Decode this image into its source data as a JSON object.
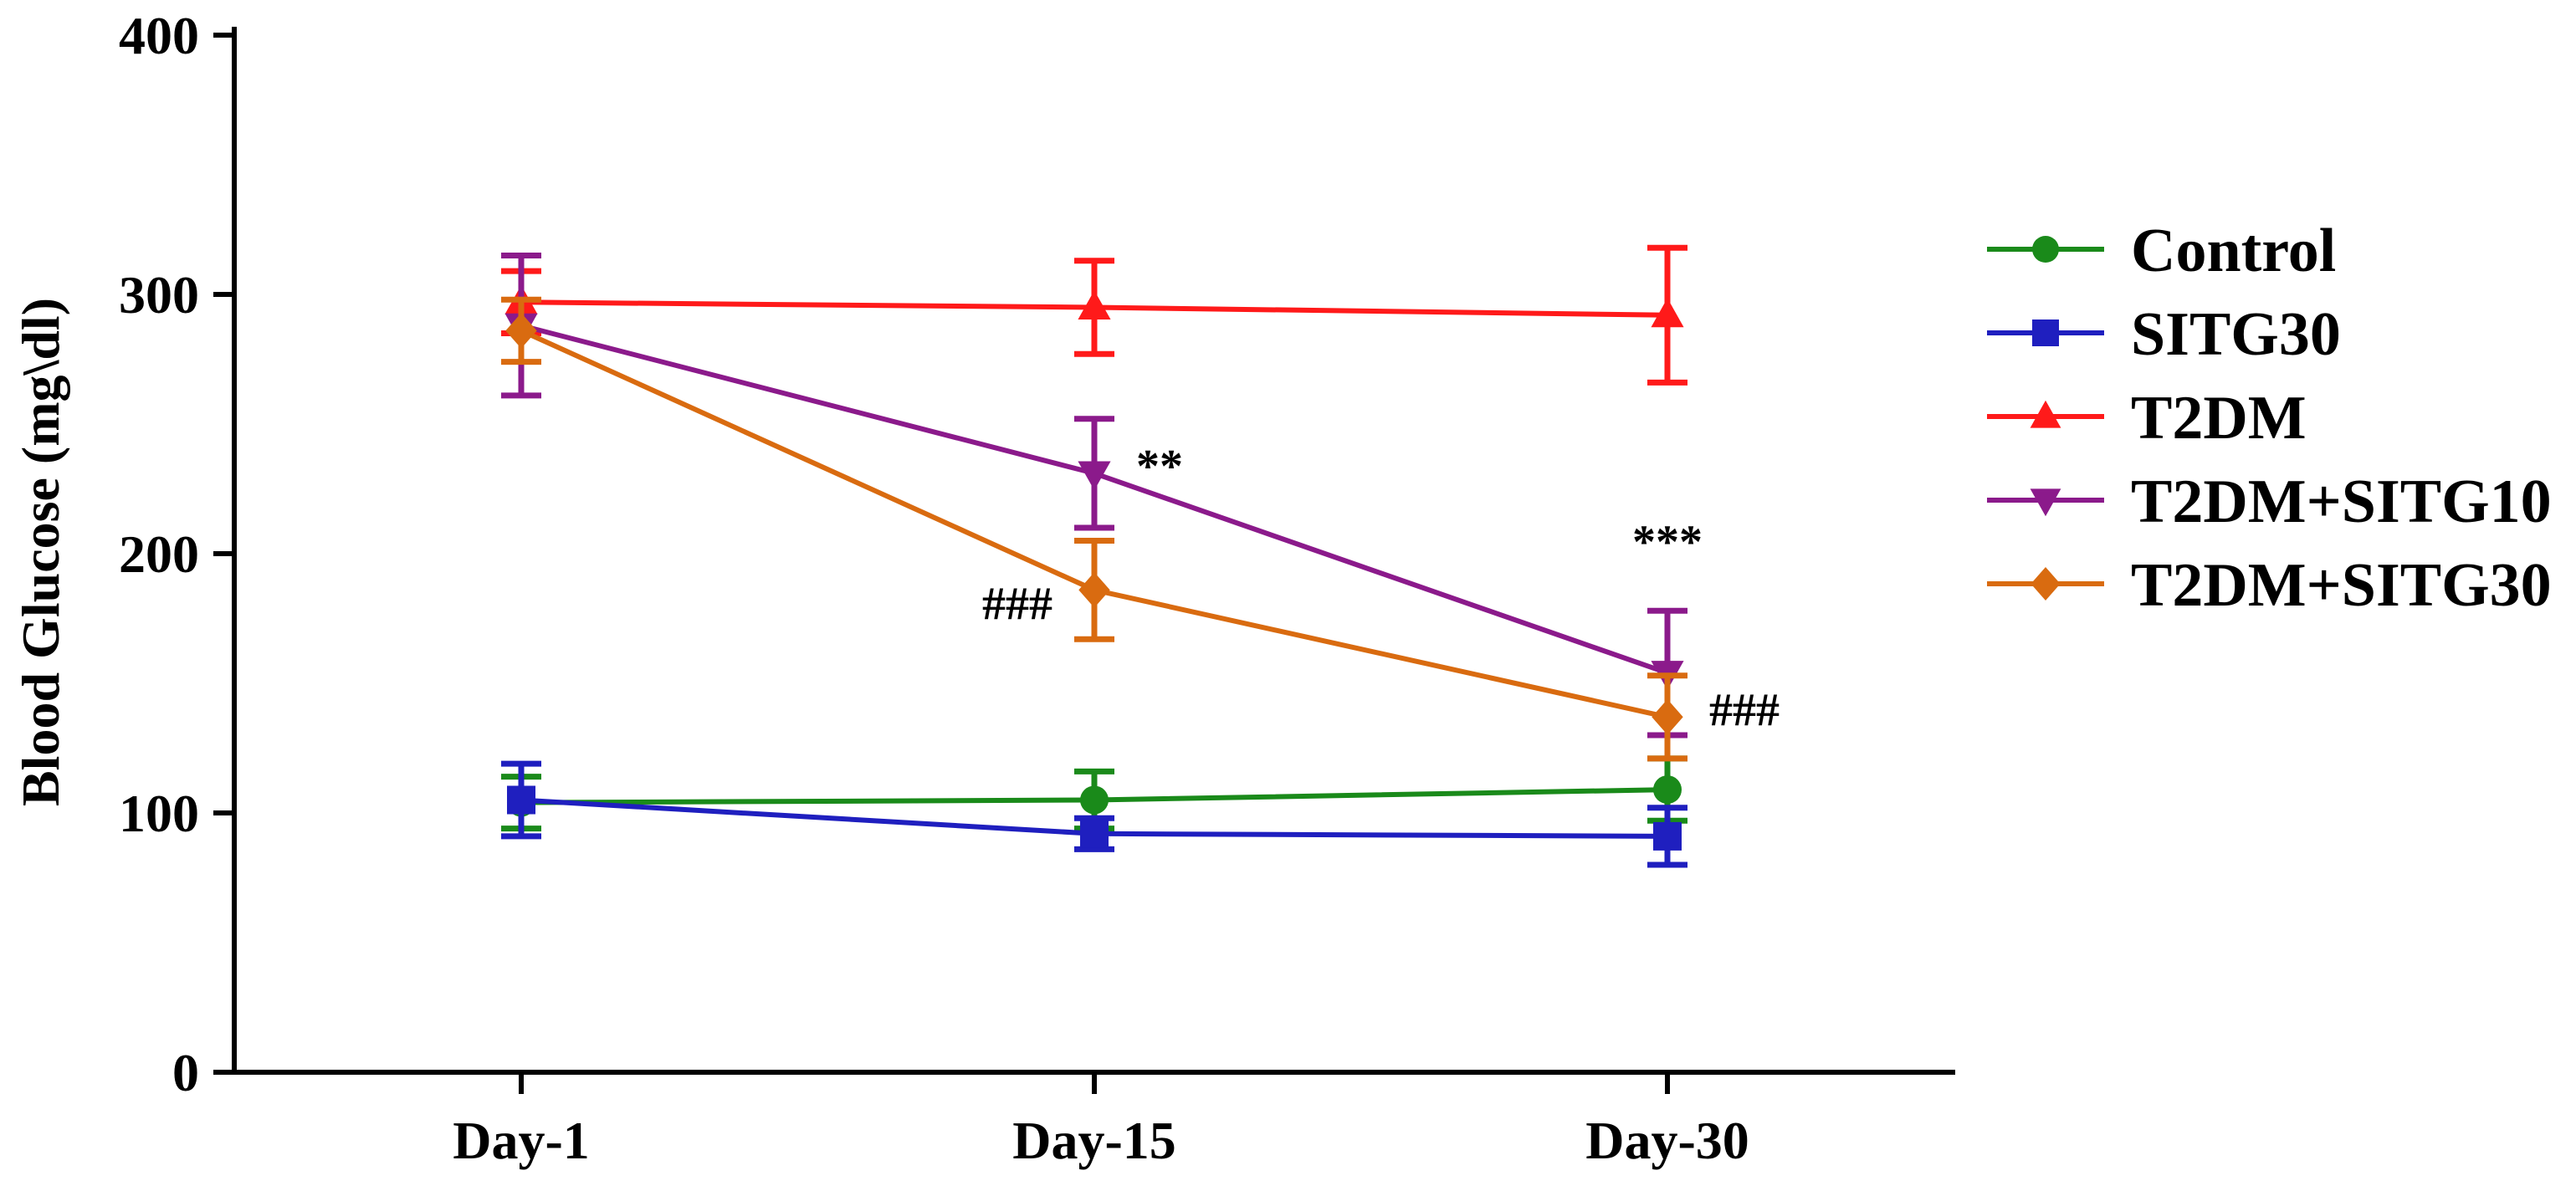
{
  "chart_data": {
    "type": "line",
    "title": "",
    "xlabel": "",
    "ylabel": "Blood Glucose (mg\\dl)",
    "categories": [
      "Day-1",
      "Day-15",
      "Day-30"
    ],
    "ylim": [
      0,
      400
    ],
    "yticks": [
      0,
      100,
      200,
      300,
      400
    ],
    "grid": false,
    "legend_position": "right",
    "series": [
      {
        "name": "Control",
        "color": "#1a8a1a",
        "marker": "circle",
        "values": [
          104,
          105,
          109
        ],
        "errors": [
          10,
          11,
          12
        ]
      },
      {
        "name": "SITG30",
        "color": "#1f1fbf",
        "marker": "square",
        "values": [
          105,
          92,
          91
        ],
        "errors": [
          14,
          6,
          11
        ]
      },
      {
        "name": "T2DM",
        "color": "#ff1a1a",
        "marker": "triangle-up",
        "values": [
          297,
          295,
          292
        ],
        "errors": [
          12,
          18,
          26
        ]
      },
      {
        "name": "T2DM+SITG10",
        "color": "#8b1a8b",
        "marker": "triangle-down",
        "values": [
          288,
          231,
          154
        ],
        "errors": [
          27,
          21,
          24
        ]
      },
      {
        "name": "T2DM+SITG30",
        "color": "#d96b10",
        "marker": "diamond",
        "values": [
          286,
          186,
          137
        ],
        "errors": [
          12,
          19,
          16
        ]
      }
    ],
    "annotations": [
      {
        "text": "**",
        "category": "Day-15",
        "y": 231,
        "side": "right"
      },
      {
        "text": "###",
        "category": "Day-15",
        "y": 186,
        "side": "left"
      },
      {
        "text": "***",
        "category": "Day-30",
        "y": 205,
        "side": "above"
      },
      {
        "text": "###",
        "category": "Day-30",
        "y": 137,
        "side": "right"
      }
    ]
  }
}
